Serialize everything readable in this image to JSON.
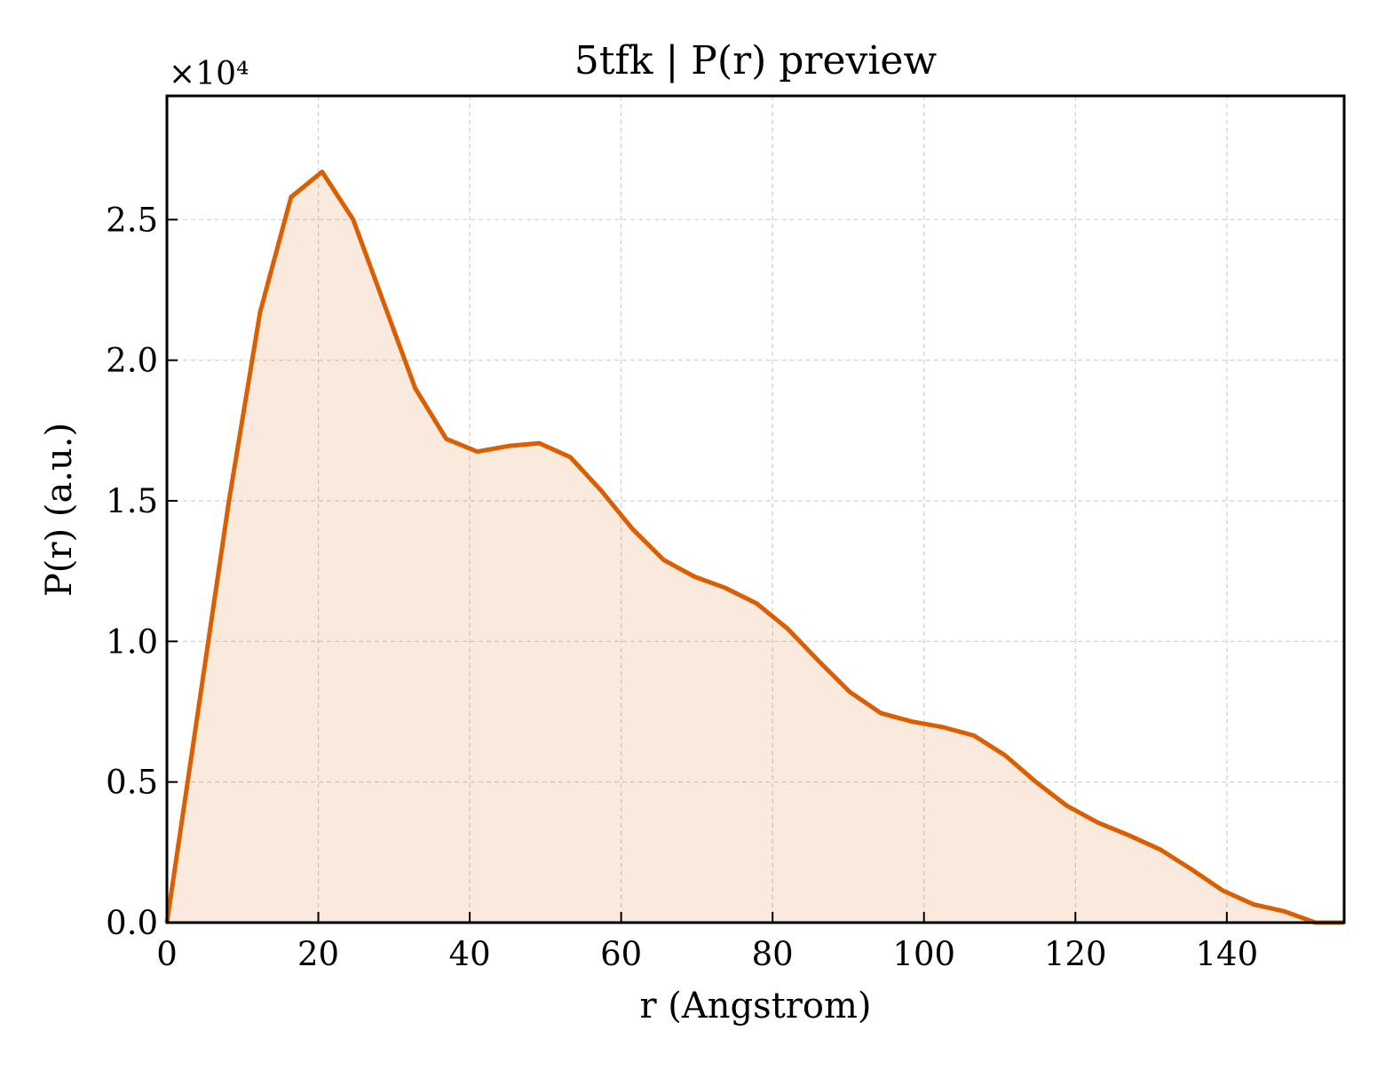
{
  "chart_data": {
    "type": "area",
    "title": "5tfk | P(r) preview",
    "xlabel": "r (Angstrom)",
    "ylabel": "P(r) (a.u.)",
    "y_multiplier_label": "×10⁴",
    "xlim": [
      0,
      155.5
    ],
    "ylim": [
      0,
      29400
    ],
    "xticks": [
      0,
      20,
      40,
      60,
      80,
      100,
      120,
      140
    ],
    "yticks": [
      0,
      5000,
      10000,
      15000,
      20000,
      25000
    ],
    "ytick_labels": [
      "0.0",
      "0.5",
      "1.0",
      "1.5",
      "2.0",
      "2.5"
    ],
    "grid": true,
    "line_color": "#d95f02",
    "fill_color": "#d95f02",
    "series": [
      {
        "x": [
          0,
          4.1,
          8.2,
          12.3,
          16.4,
          20.5,
          24.6,
          28.7,
          32.8,
          36.9,
          41.0,
          45.1,
          49.2,
          53.3,
          57.4,
          61.5,
          65.6,
          69.7,
          73.8,
          77.9,
          82.0,
          86.1,
          90.2,
          94.3,
          98.4,
          102.5,
          106.6,
          110.7,
          114.8,
          118.9,
          123.0,
          127.1,
          131.2,
          135.3,
          139.4,
          143.5,
          147.6,
          151.7,
          155.5
        ],
        "y": [
          0,
          7500,
          15000,
          21700,
          25800,
          26700,
          25000,
          22000,
          19000,
          17200,
          16750,
          16950,
          17050,
          16550,
          15350,
          14000,
          12900,
          12300,
          11900,
          11350,
          10450,
          9300,
          8200,
          7450,
          7150,
          6950,
          6650,
          5950,
          5000,
          4150,
          3550,
          3100,
          2600,
          1900,
          1150,
          650,
          400,
          0,
          0
        ]
      }
    ]
  }
}
